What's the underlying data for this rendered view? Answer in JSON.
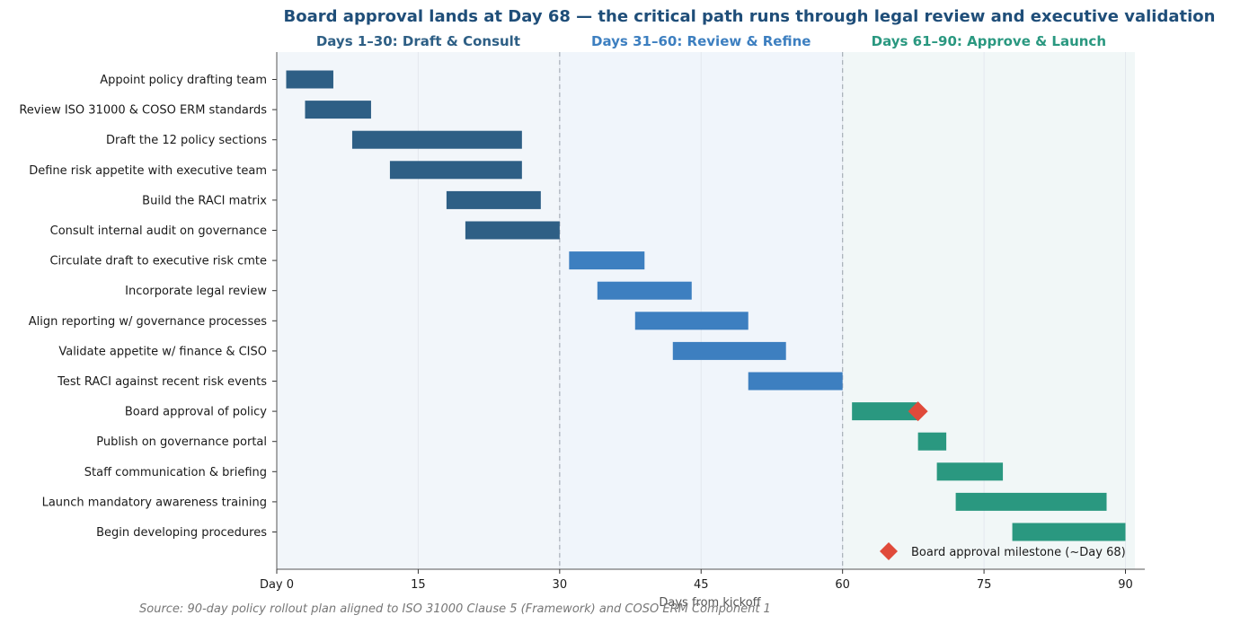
{
  "chart_data": {
    "type": "gantt",
    "title": "Board approval lands at Day 68 — the critical path runs through legal review and executive validation",
    "xlabel": "Days from kickoff",
    "xlim": [
      0,
      91
    ],
    "xticks": [
      0,
      15,
      30,
      45,
      60,
      75,
      90
    ],
    "xtick_labels": [
      "Day 0",
      "15",
      "30",
      "45",
      "60",
      "75",
      "90"
    ],
    "grid": true,
    "phases": [
      {
        "label": "Days 1–30:  Draft & Consult",
        "start": 0,
        "end": 30,
        "color": "#2e5f85",
        "shade": "#f2f6fa"
      },
      {
        "label": "Days 31–60:  Review & Refine",
        "start": 30,
        "end": 60,
        "color": "#3d7fc0",
        "shade": "#f0f5fb"
      },
      {
        "label": "Days 61–90:  Approve & Launch",
        "start": 60,
        "end": 91,
        "color": "#2a9880",
        "shade": "#f1f7f7"
      }
    ],
    "phase_dividers": [
      30,
      60
    ],
    "tasks": [
      {
        "name": "Appoint policy drafting team",
        "start": 1,
        "end": 6,
        "phase": 0
      },
      {
        "name": "Review ISO 31000 & COSO ERM standards",
        "start": 3,
        "end": 10,
        "phase": 0
      },
      {
        "name": "Draft the 12 policy sections",
        "start": 8,
        "end": 26,
        "phase": 0
      },
      {
        "name": "Define risk appetite with executive team",
        "start": 12,
        "end": 26,
        "phase": 0
      },
      {
        "name": "Build the RACI matrix",
        "start": 18,
        "end": 28,
        "phase": 0
      },
      {
        "name": "Consult internal audit on governance",
        "start": 20,
        "end": 30,
        "phase": 0
      },
      {
        "name": "Circulate draft to executive risk cmte",
        "start": 31,
        "end": 39,
        "phase": 1
      },
      {
        "name": "Incorporate legal review",
        "start": 34,
        "end": 44,
        "phase": 1
      },
      {
        "name": "Align reporting w/ governance processes",
        "start": 38,
        "end": 50,
        "phase": 1
      },
      {
        "name": "Validate appetite w/ finance & CISO",
        "start": 42,
        "end": 54,
        "phase": 1
      },
      {
        "name": "Test RACI against recent risk events",
        "start": 50,
        "end": 60,
        "phase": 1
      },
      {
        "name": "Board approval of policy",
        "start": 61,
        "end": 68,
        "phase": 2
      },
      {
        "name": "Publish on governance portal",
        "start": 68,
        "end": 71,
        "phase": 2
      },
      {
        "name": "Staff communication & briefing",
        "start": 70,
        "end": 77,
        "phase": 2
      },
      {
        "name": "Launch mandatory awareness training",
        "start": 72,
        "end": 88,
        "phase": 2
      },
      {
        "name": "Begin developing procedures",
        "start": 78,
        "end": 90,
        "phase": 2
      }
    ],
    "milestone": {
      "label": "Board approval milestone (~Day 68)",
      "x": 68,
      "task_index": 11,
      "color": "#e04a3a"
    },
    "legend": "bottom-right",
    "source": "Source: 90-day policy rollout plan aligned to ISO 31000 Clause 5 (Framework) and COSO ERM Component 1"
  }
}
